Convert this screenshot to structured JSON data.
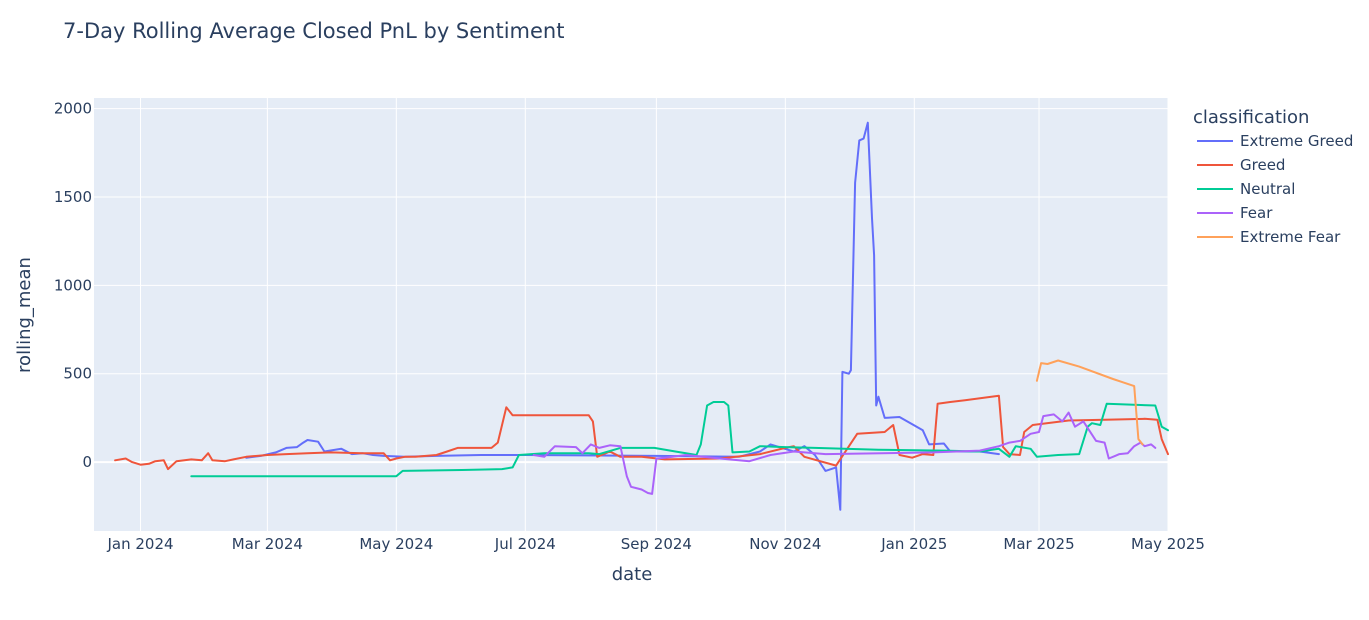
{
  "chart_data": {
    "type": "line",
    "title": "7-Day Rolling Average Closed PnL by Sentiment",
    "xlabel": "date",
    "ylabel": "rolling_mean",
    "xlim": [
      "2023-12-10",
      "2025-05-01"
    ],
    "ylim": [
      -390,
      2060
    ],
    "x_ticks": [
      "2024-01-01",
      "2024-03-01",
      "2024-05-01",
      "2024-07-01",
      "2024-09-01",
      "2024-11-01",
      "2025-01-01",
      "2025-03-01",
      "2025-05-01"
    ],
    "x_tick_labels": [
      "Jan 2024",
      "Mar 2024",
      "May 2024",
      "Jul 2024",
      "Sep 2024",
      "Nov 2024",
      "Jan 2025",
      "Mar 2025",
      "May 2025"
    ],
    "y_ticks": [
      0,
      500,
      1000,
      1500,
      2000
    ],
    "y_tick_labels": [
      "0",
      "500",
      "1000",
      "1500",
      "2000"
    ],
    "grid": true,
    "background": "#e5ecf6",
    "legend": {
      "title": "classification",
      "placement": "right"
    },
    "series": [
      {
        "name": "Extreme Greed",
        "color": "#636efa",
        "points": [
          [
            "2024-02-20",
            25
          ],
          [
            "2024-02-27",
            35
          ],
          [
            "2024-03-05",
            55
          ],
          [
            "2024-03-10",
            80
          ],
          [
            "2024-03-15",
            85
          ],
          [
            "2024-03-18",
            110
          ],
          [
            "2024-03-20",
            125
          ],
          [
            "2024-03-25",
            115
          ],
          [
            "2024-03-28",
            60
          ],
          [
            "2024-04-05",
            75
          ],
          [
            "2024-04-10",
            45
          ],
          [
            "2024-04-15",
            50
          ],
          [
            "2024-04-20",
            40
          ],
          [
            "2024-04-25",
            35
          ],
          [
            "2024-05-05",
            30
          ],
          [
            "2024-05-20",
            35
          ],
          [
            "2024-06-10",
            40
          ],
          [
            "2024-07-01",
            40
          ],
          [
            "2024-09-01",
            35
          ],
          [
            "2024-10-10",
            30
          ],
          [
            "2024-10-20",
            60
          ],
          [
            "2024-10-25",
            100
          ],
          [
            "2024-11-05",
            60
          ],
          [
            "2024-11-10",
            90
          ],
          [
            "2024-11-15",
            40
          ],
          [
            "2024-11-20",
            -50
          ],
          [
            "2024-11-25",
            -30
          ],
          [
            "2024-11-27",
            -270
          ],
          [
            "2024-11-28",
            510
          ],
          [
            "2024-12-01",
            500
          ],
          [
            "2024-12-02",
            520
          ],
          [
            "2024-12-04",
            1580
          ],
          [
            "2024-12-06",
            1820
          ],
          [
            "2024-12-08",
            1830
          ],
          [
            "2024-12-10",
            1920
          ],
          [
            "2024-12-12",
            1380
          ],
          [
            "2024-12-13",
            1170
          ],
          [
            "2024-12-14",
            320
          ],
          [
            "2024-12-15",
            370
          ],
          [
            "2024-12-18",
            250
          ],
          [
            "2024-12-25",
            255
          ],
          [
            "2025-01-05",
            180
          ],
          [
            "2025-01-08",
            100
          ],
          [
            "2025-01-15",
            105
          ],
          [
            "2025-01-18",
            60
          ],
          [
            "2025-02-01",
            60
          ],
          [
            "2025-02-10",
            45
          ]
        ]
      },
      {
        "name": "Greed",
        "color": "#ef553b",
        "points": [
          [
            "2023-12-20",
            10
          ],
          [
            "2023-12-25",
            20
          ],
          [
            "2023-12-28",
            0
          ],
          [
            "2024-01-01",
            -15
          ],
          [
            "2024-01-05",
            -10
          ],
          [
            "2024-01-08",
            5
          ],
          [
            "2024-01-12",
            10
          ],
          [
            "2024-01-14",
            -40
          ],
          [
            "2024-01-18",
            5
          ],
          [
            "2024-01-25",
            15
          ],
          [
            "2024-01-30",
            10
          ],
          [
            "2024-02-02",
            50
          ],
          [
            "2024-02-04",
            10
          ],
          [
            "2024-02-10",
            5
          ],
          [
            "2024-02-14",
            15
          ],
          [
            "2024-02-20",
            30
          ],
          [
            "2024-03-01",
            40
          ],
          [
            "2024-03-10",
            45
          ],
          [
            "2024-03-20",
            50
          ],
          [
            "2024-03-31",
            55
          ],
          [
            "2024-04-15",
            50
          ],
          [
            "2024-04-25",
            50
          ],
          [
            "2024-04-28",
            10
          ],
          [
            "2024-05-01",
            20
          ],
          [
            "2024-05-05",
            30
          ],
          [
            "2024-05-10",
            30
          ],
          [
            "2024-05-20",
            40
          ],
          [
            "2024-05-25",
            60
          ],
          [
            "2024-05-30",
            80
          ],
          [
            "2024-06-15",
            80
          ],
          [
            "2024-06-18",
            110
          ],
          [
            "2024-06-22",
            310
          ],
          [
            "2024-06-25",
            265
          ],
          [
            "2024-07-31",
            265
          ],
          [
            "2024-08-02",
            230
          ],
          [
            "2024-08-04",
            30
          ],
          [
            "2024-08-10",
            60
          ],
          [
            "2024-08-15",
            30
          ],
          [
            "2024-08-25",
            30
          ],
          [
            "2024-09-05",
            15
          ],
          [
            "2024-10-01",
            20
          ],
          [
            "2024-10-20",
            45
          ],
          [
            "2024-11-01",
            80
          ],
          [
            "2024-11-05",
            90
          ],
          [
            "2024-11-10",
            30
          ],
          [
            "2024-11-25",
            -20
          ],
          [
            "2024-12-05",
            160
          ],
          [
            "2024-12-18",
            170
          ],
          [
            "2024-12-22",
            210
          ],
          [
            "2024-12-25",
            40
          ],
          [
            "2024-12-31",
            25
          ],
          [
            "2025-01-05",
            45
          ],
          [
            "2025-01-10",
            40
          ],
          [
            "2025-01-12",
            330
          ],
          [
            "2025-01-18",
            340
          ],
          [
            "2025-01-25",
            350
          ],
          [
            "2025-02-10",
            375
          ],
          [
            "2025-02-12",
            85
          ],
          [
            "2025-02-15",
            45
          ],
          [
            "2025-02-20",
            40
          ],
          [
            "2025-02-22",
            170
          ],
          [
            "2025-02-26",
            210
          ],
          [
            "2025-03-15",
            235
          ],
          [
            "2025-04-01",
            240
          ],
          [
            "2025-04-20",
            245
          ],
          [
            "2025-04-26",
            240
          ],
          [
            "2025-04-28",
            130
          ],
          [
            "2025-05-01",
            45
          ]
        ]
      },
      {
        "name": "Neutral",
        "color": "#00cc96",
        "points": [
          [
            "2024-01-25",
            -80
          ],
          [
            "2024-05-01",
            -80
          ],
          [
            "2024-05-04",
            -50
          ],
          [
            "2024-06-01",
            -45
          ],
          [
            "2024-06-20",
            -40
          ],
          [
            "2024-06-25",
            -30
          ],
          [
            "2024-06-28",
            40
          ],
          [
            "2024-07-10",
            50
          ],
          [
            "2024-07-31",
            50
          ],
          [
            "2024-08-05",
            45
          ],
          [
            "2024-08-15",
            80
          ],
          [
            "2024-08-31",
            80
          ],
          [
            "2024-09-10",
            60
          ],
          [
            "2024-09-20",
            40
          ],
          [
            "2024-09-22",
            100
          ],
          [
            "2024-09-25",
            320
          ],
          [
            "2024-09-28",
            340
          ],
          [
            "2024-10-03",
            340
          ],
          [
            "2024-10-05",
            320
          ],
          [
            "2024-10-07",
            55
          ],
          [
            "2024-10-15",
            60
          ],
          [
            "2024-10-20",
            90
          ],
          [
            "2024-11-01",
            85
          ],
          [
            "2024-11-15",
            80
          ],
          [
            "2024-12-15",
            70
          ],
          [
            "2025-01-15",
            65
          ],
          [
            "2025-02-01",
            60
          ],
          [
            "2025-02-10",
            75
          ],
          [
            "2025-02-15",
            30
          ],
          [
            "2025-02-18",
            90
          ],
          [
            "2025-02-25",
            75
          ],
          [
            "2025-02-28",
            30
          ],
          [
            "2025-03-10",
            40
          ],
          [
            "2025-03-20",
            45
          ],
          [
            "2025-03-24",
            200
          ],
          [
            "2025-03-26",
            220
          ],
          [
            "2025-03-30",
            210
          ],
          [
            "2025-04-02",
            330
          ],
          [
            "2025-04-25",
            320
          ],
          [
            "2025-04-28",
            200
          ],
          [
            "2025-05-01",
            180
          ]
        ]
      },
      {
        "name": "Fear",
        "color": "#ab63fa",
        "points": [
          [
            "2024-07-05",
            40
          ],
          [
            "2024-07-10",
            30
          ],
          [
            "2024-07-15",
            90
          ],
          [
            "2024-07-25",
            85
          ],
          [
            "2024-07-28",
            50
          ],
          [
            "2024-08-01",
            100
          ],
          [
            "2024-08-05",
            80
          ],
          [
            "2024-08-10",
            95
          ],
          [
            "2024-08-15",
            90
          ],
          [
            "2024-08-18",
            -80
          ],
          [
            "2024-08-20",
            -140
          ],
          [
            "2024-08-25",
            -155
          ],
          [
            "2024-08-28",
            -175
          ],
          [
            "2024-08-30",
            -180
          ],
          [
            "2024-09-01",
            20
          ],
          [
            "2024-09-05",
            25
          ],
          [
            "2024-09-15",
            40
          ],
          [
            "2024-10-01",
            20
          ],
          [
            "2024-10-15",
            5
          ],
          [
            "2024-10-25",
            40
          ],
          [
            "2024-11-05",
            60
          ],
          [
            "2024-11-20",
            45
          ],
          [
            "2025-01-10",
            55
          ],
          [
            "2025-02-01",
            65
          ],
          [
            "2025-02-10",
            90
          ],
          [
            "2025-02-15",
            110
          ],
          [
            "2025-02-20",
            120
          ],
          [
            "2025-02-25",
            160
          ],
          [
            "2025-03-01",
            170
          ],
          [
            "2025-03-03",
            260
          ],
          [
            "2025-03-08",
            270
          ],
          [
            "2025-03-12",
            230
          ],
          [
            "2025-03-15",
            280
          ],
          [
            "2025-03-18",
            200
          ],
          [
            "2025-03-22",
            230
          ],
          [
            "2025-03-28",
            120
          ],
          [
            "2025-04-01",
            110
          ],
          [
            "2025-04-03",
            20
          ],
          [
            "2025-04-06",
            35
          ],
          [
            "2025-04-08",
            45
          ],
          [
            "2025-04-12",
            50
          ],
          [
            "2025-04-15",
            90
          ],
          [
            "2025-04-18",
            110
          ],
          [
            "2025-04-20",
            90
          ],
          [
            "2025-04-23",
            100
          ],
          [
            "2025-04-25",
            80
          ]
        ]
      },
      {
        "name": "Extreme Fear",
        "color": "#ffa15a",
        "points": [
          [
            "2025-02-28",
            460
          ],
          [
            "2025-03-02",
            560
          ],
          [
            "2025-03-05",
            555
          ],
          [
            "2025-03-10",
            575
          ],
          [
            "2025-03-20",
            540
          ],
          [
            "2025-04-05",
            470
          ],
          [
            "2025-04-15",
            430
          ],
          [
            "2025-04-17",
            130
          ],
          [
            "2025-04-19",
            100
          ]
        ]
      }
    ]
  }
}
